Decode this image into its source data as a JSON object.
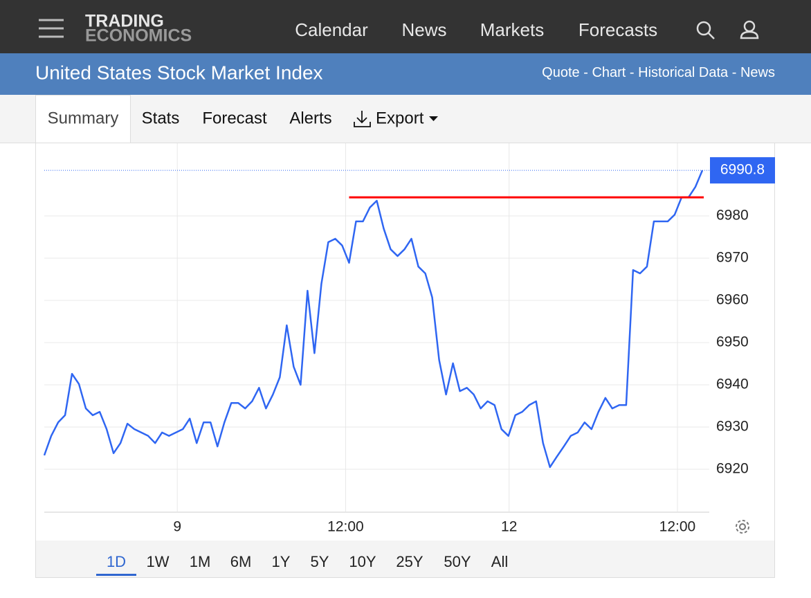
{
  "header": {
    "logo": [
      "TRADING",
      "ECONOMICS"
    ],
    "nav": [
      "Calendar",
      "News",
      "Markets",
      "Forecasts"
    ]
  },
  "banner": {
    "title": "United States Stock Market Index",
    "links": [
      "Quote",
      "Chart",
      "Historical Data",
      "News"
    ],
    "separator": "-"
  },
  "tabs": [
    "Summary",
    "Stats",
    "Forecast",
    "Alerts",
    "Export"
  ],
  "active_tab": 0,
  "ranges": [
    "1D",
    "1W",
    "1M",
    "6M",
    "1Y",
    "5Y",
    "10Y",
    "25Y",
    "50Y",
    "All"
  ],
  "active_range": 0,
  "chart_data": {
    "type": "line",
    "series": [
      {
        "color": "#2f66f2",
        "values": [
          6923.3,
          6927.9,
          6931.1,
          6932.8,
          6942.6,
          6940.2,
          6934.4,
          6932.8,
          6933.6,
          6929.5,
          6923.8,
          6926.2,
          6930.8,
          6929.5,
          6928.7,
          6927.9,
          6926.2,
          6928.7,
          6927.9,
          6928.7,
          6929.5,
          6932.0,
          6926.2,
          6931.1,
          6931.1,
          6925.4,
          6931.1,
          6935.7,
          6935.7,
          6934.4,
          6936.1,
          6939.3,
          6934.4,
          6937.7,
          6941.8,
          6954.1,
          6944.3,
          6940.0,
          6962.3,
          6947.5,
          6963.9,
          6973.8,
          6974.6,
          6973.0,
          6968.9,
          6978.7,
          6978.7,
          6982.0,
          6983.6,
          6977.0,
          6972.1,
          6970.5,
          6972.1,
          6974.6,
          6968.0,
          6966.4,
          6960.7,
          6945.9,
          6937.7,
          6945.1,
          6938.5,
          6939.3,
          6937.7,
          6934.4,
          6936.1,
          6935.2,
          6929.5,
          6927.9,
          6932.8,
          6933.6,
          6935.2,
          6936.1,
          6926.2,
          6920.5,
          6923.0,
          6925.4,
          6927.9,
          6928.7,
          6931.1,
          6929.5,
          6933.6,
          6936.9,
          6934.4,
          6935.2,
          6935.2,
          6967.2,
          6966.4,
          6968.0,
          6978.7,
          6978.7,
          6978.7,
          6980.3,
          6984.4,
          6984.4,
          6986.9,
          6990.8
        ]
      }
    ],
    "xlim": [
      0,
      95
    ],
    "xticks": [
      {
        "value": 19.2,
        "label": "9"
      },
      {
        "value": 43.5,
        "label": "12:00"
      },
      {
        "value": 67.1,
        "label": "12"
      },
      {
        "value": 91.4,
        "label": "12:00"
      }
    ],
    "ylim": [
      6910,
      6997
    ],
    "yticks": [
      6920,
      6930,
      6940,
      6950,
      6960,
      6970,
      6980
    ],
    "grid": true,
    "hline": {
      "value": 6984.4,
      "x_from": 44,
      "x_to": 95.2,
      "color": "#ff0000"
    }
  }
}
